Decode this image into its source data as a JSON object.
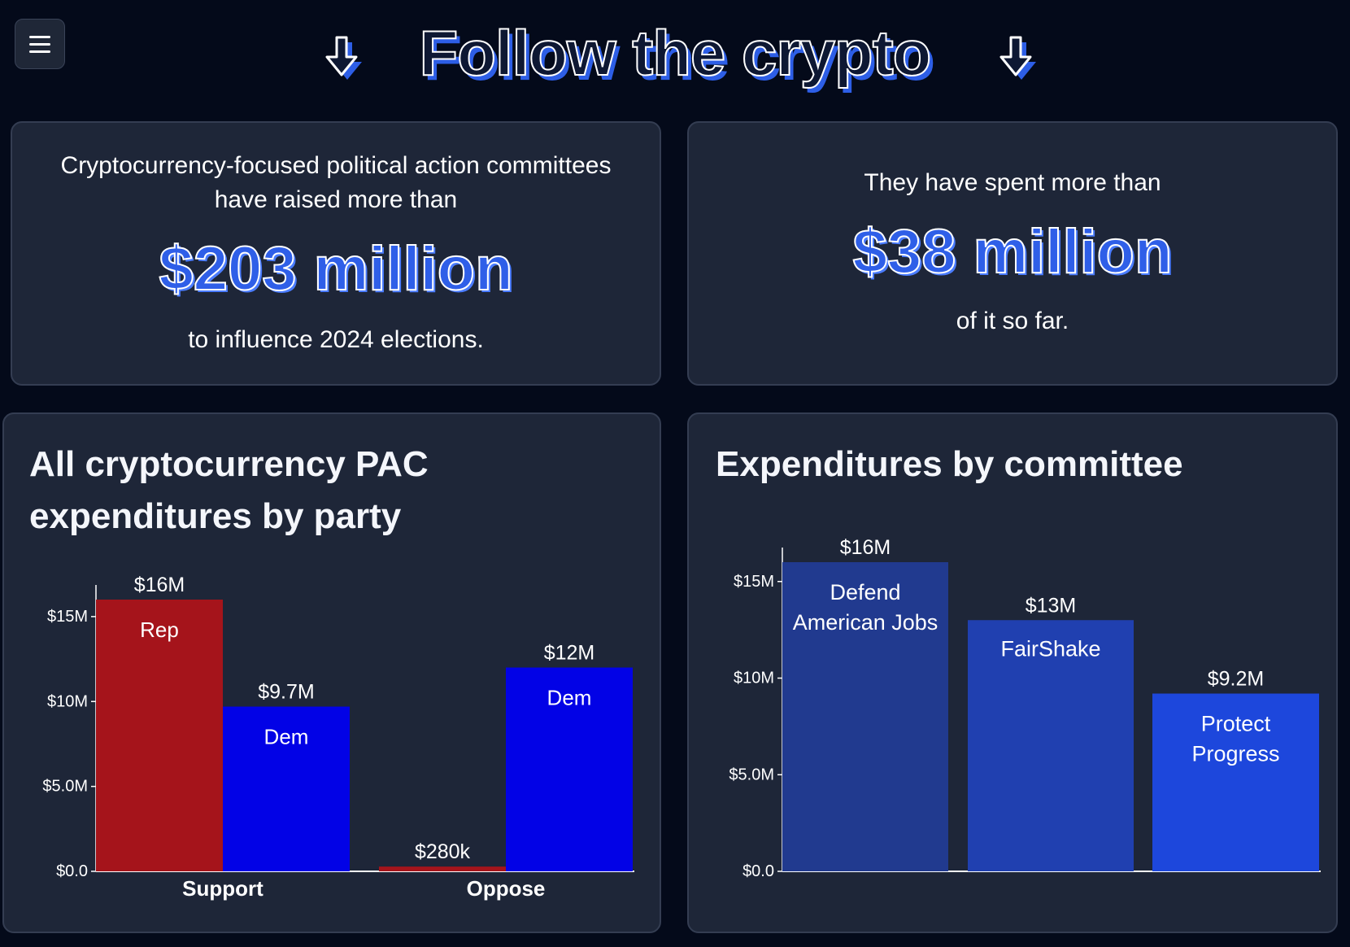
{
  "header": {
    "title": "Follow the crypto",
    "menu_icon": "hamburger-menu-icon",
    "arrow_icon": "arrow-down-icon"
  },
  "stats": {
    "raised": {
      "lead_line1": "Cryptocurrency-focused political action committees",
      "lead_line2": "have raised more than",
      "amount": "$203 million",
      "tail": "to influence 2024 elections."
    },
    "spent": {
      "lead": "They have spent more than",
      "amount": "$38 million",
      "tail": "of it so far."
    }
  },
  "colors": {
    "background": "#040a1a",
    "card": "#1e2638",
    "accent": "#2f5fe8",
    "rep": "#a5141b",
    "dem": "#0202e6"
  },
  "chart_data": [
    {
      "type": "bar",
      "title": "All cryptocurrency PAC expenditures by party",
      "categories": [
        "Support",
        "Oppose"
      ],
      "series": [
        {
          "name": "Rep",
          "values": [
            16000000,
            280000
          ],
          "labels": [
            "$16M",
            "$280k"
          ],
          "color": "#a5141b"
        },
        {
          "name": "Dem",
          "values": [
            9700000,
            12000000
          ],
          "labels": [
            "$9.7M",
            "$12M"
          ],
          "color": "#0202e6"
        }
      ],
      "yticks": [
        "$0.0",
        "$5.0M",
        "$10M",
        "$15M"
      ],
      "ytick_values": [
        0,
        5000000,
        10000000,
        15000000
      ],
      "ylim": [
        0,
        16000000
      ],
      "xlabel": "",
      "ylabel": "",
      "grid": false
    },
    {
      "type": "bar",
      "title": "Expenditures by committee",
      "categories": [
        [
          "Defend",
          "American Jobs"
        ],
        [
          "FairShake"
        ],
        [
          "Protect",
          "Progress"
        ]
      ],
      "values": [
        16000000,
        13000000,
        9200000
      ],
      "labels": [
        "$16M",
        "$13M",
        "$9.2M"
      ],
      "colors": [
        "#213a8f",
        "#2040b0",
        "#1d47dc"
      ],
      "yticks": [
        "$0.0",
        "$5.0M",
        "$10M",
        "$15M"
      ],
      "ytick_values": [
        0,
        5000000,
        10000000,
        15000000
      ],
      "ylim": [
        0,
        16000000
      ],
      "xlabel": "",
      "ylabel": "",
      "grid": false
    }
  ]
}
